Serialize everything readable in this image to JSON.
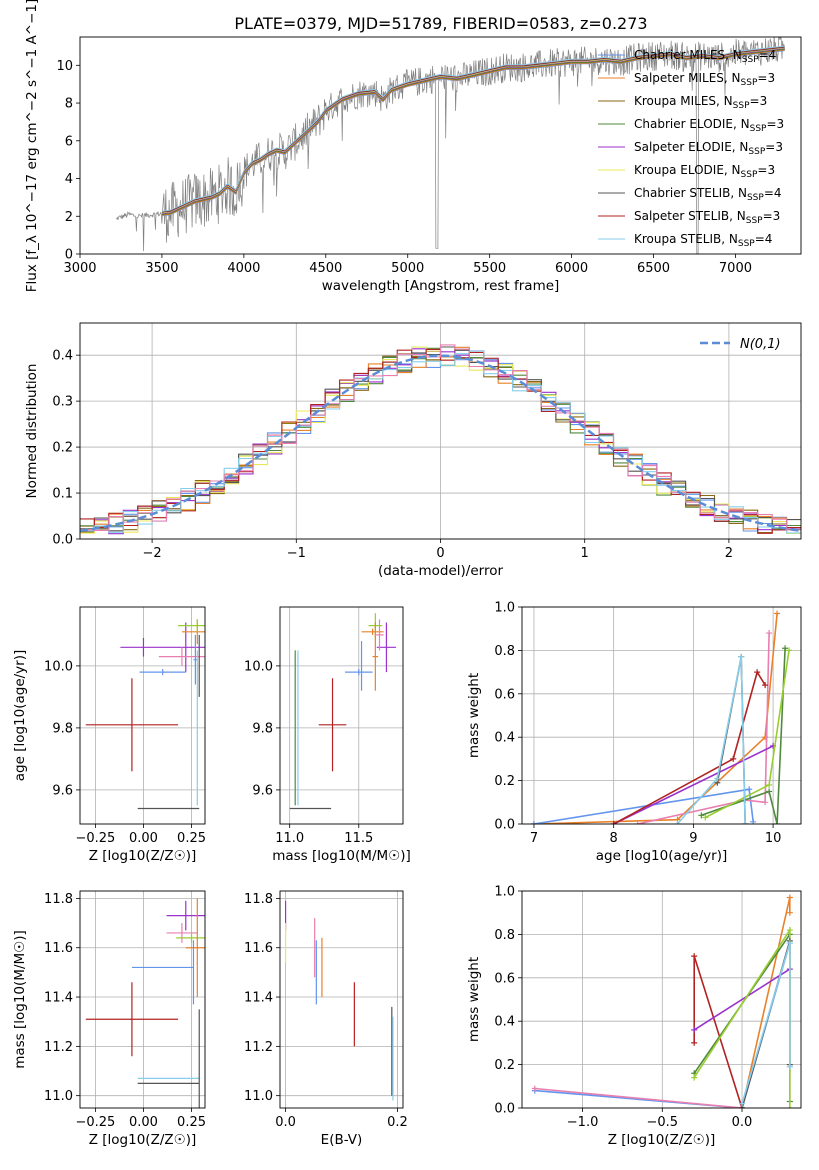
{
  "title": "PLATE=0379, MJD=51789, FIBERID=0583, z=0.273",
  "colors": {
    "c1": "#6495ed",
    "c2": "#e8822a",
    "c3": "#8b6914",
    "c4": "#4f8a3c",
    "c5": "#9a32cd",
    "c6": "#e8e85a",
    "c7": "#555555",
    "c8": "#b22222",
    "c9": "#87ceeb",
    "pink": "#e87fb0",
    "lime": "#9acd32"
  },
  "chart_data": [
    {
      "type": "line",
      "name": "spectrum",
      "xlabel": "wavelength [Angstrom, rest frame]",
      "ylabel": "Flux [f_λ 10^−17 erg cm^−2 s^−1 A^−1]",
      "xlim": [
        3000,
        7400
      ],
      "ylim": [
        0,
        11.5
      ],
      "xticks": [
        3000,
        3500,
        4000,
        4500,
        5000,
        5500,
        6000,
        6500,
        7000
      ],
      "yticks": [
        0,
        2,
        4,
        6,
        8,
        10
      ],
      "data_color": "#808080",
      "model_curve": {
        "x": [
          3220,
          3230,
          3300,
          3350,
          3400,
          3450,
          3500,
          3550,
          3600,
          3650,
          3700,
          3750,
          3800,
          3850,
          3900,
          3950,
          4000,
          4050,
          4100,
          4150,
          4200,
          4250,
          4300,
          4350,
          4400,
          4450,
          4500,
          4600,
          4700,
          4800,
          4850,
          4900,
          5000,
          5100,
          5200,
          5300,
          5400,
          5500,
          5600,
          5700,
          5800,
          5900,
          6000,
          6100,
          6200,
          6300,
          6400,
          6500,
          6600,
          6700,
          6800,
          6900,
          7000,
          7100,
          7200,
          7300
        ],
        "y": [
          1.8,
          1.9,
          2.1,
          2.0,
          2.05,
          2.1,
          2.15,
          2.2,
          2.4,
          2.6,
          2.8,
          2.9,
          3.0,
          3.2,
          3.6,
          3.3,
          4.3,
          4.8,
          5.0,
          5.3,
          5.5,
          5.4,
          5.8,
          6.2,
          6.6,
          7.0,
          7.6,
          8.2,
          8.5,
          8.6,
          8.2,
          8.7,
          9.0,
          9.2,
          9.4,
          9.3,
          9.5,
          9.7,
          9.9,
          9.9,
          10.0,
          10.1,
          10.2,
          10.2,
          10.3,
          10.2,
          10.4,
          10.5,
          10.6,
          10.4,
          10.5,
          10.4,
          10.6,
          10.7,
          10.8,
          10.9
        ]
      },
      "legend": [
        {
          "label": "Chabrier MILES, N",
          "n": "4",
          "color": "#6495ed"
        },
        {
          "label": "Salpeter MILES, N",
          "n": "3",
          "color": "#e8822a"
        },
        {
          "label": "Kroupa MILES, N",
          "n": "3",
          "color": "#8b6914"
        },
        {
          "label": "Chabrier ELODIE, N",
          "n": "3",
          "color": "#4f8a3c"
        },
        {
          "label": "Salpeter ELODIE, N",
          "n": "3",
          "color": "#9a32cd"
        },
        {
          "label": "Kroupa ELODIE, N",
          "n": "3",
          "color": "#e8e85a"
        },
        {
          "label": "Chabrier STELIB, N",
          "n": "4",
          "color": "#555555"
        },
        {
          "label": "Salpeter STELIB, N",
          "n": "3",
          "color": "#b22222"
        },
        {
          "label": "Kroupa STELIB, N",
          "n": "4",
          "color": "#87ceeb"
        }
      ],
      "legend_sub": "SSP",
      "legend_position": "right"
    },
    {
      "type": "line",
      "name": "histogram",
      "xlabel": "(data-model)/error",
      "ylabel": "Normed distribution",
      "xlim": [
        -2.5,
        2.5
      ],
      "ylim": [
        0,
        0.47
      ],
      "xticks": [
        -2,
        -1,
        0,
        1,
        2
      ],
      "yticks": [
        0.0,
        0.1,
        0.2,
        0.3,
        0.4
      ],
      "legend_label": "N(0,1)",
      "legend_position": "top-right",
      "grid": true
    },
    {
      "type": "scatter",
      "name": "age-vs-Z",
      "xlabel": "Z [log10(Z/Z☉)]",
      "ylabel": "age [log10(age/yr)]",
      "xlim": [
        -0.33,
        0.32
      ],
      "ylim": [
        9.49,
        10.19
      ],
      "xticks": [
        -0.25,
        0.0,
        0.25
      ],
      "yticks": [
        9.6,
        9.8,
        10.0
      ],
      "crosses": [
        {
          "x": 0.0,
          "y": 10.06,
          "xerr": 0.12,
          "yerr": 0.03,
          "color": "#9a32cd"
        },
        {
          "x": 0.22,
          "y": 10.06,
          "xerr": 0.1,
          "yerr": 0.08,
          "color": "#9a32cd"
        },
        {
          "x": 0.28,
          "y": 10.11,
          "xerr": 0.08,
          "yerr": 0.04,
          "color": "#e8822a"
        },
        {
          "x": 0.28,
          "y": 10.13,
          "xerr": 0.1,
          "yerr": 0.02,
          "color": "#9acd32"
        },
        {
          "x": 0.2,
          "y": 10.03,
          "xerr": 0.12,
          "yerr": 0.03,
          "color": "#e87fb0"
        },
        {
          "x": 0.1,
          "y": 9.98,
          "xerr": 0.12,
          "yerr": 0.01,
          "color": "#6495ed"
        },
        {
          "x": 0.27,
          "y": 10.02,
          "xerr": 0.01,
          "yerr": 0.08,
          "color": "#6495ed"
        },
        {
          "x": -0.06,
          "y": 9.81,
          "xerr": 0.24,
          "yerr": 0.15,
          "color": "#b22222"
        },
        {
          "x": 0.13,
          "y": 9.54,
          "xerr": 0.16,
          "yerr": 0.0,
          "color": "#555555"
        },
        {
          "x": 0.28,
          "y": 9.8,
          "xerr": 0.0,
          "yerr": 0.25,
          "color": "#87ceeb"
        },
        {
          "x": 0.29,
          "y": 10.0,
          "xerr": 0.0,
          "yerr": 0.1,
          "color": "#555555"
        }
      ]
    },
    {
      "type": "scatter",
      "name": "age-vs-mass",
      "xlabel": "mass [log10(M/M☉)]",
      "ylabel": "",
      "xlim": [
        10.93,
        11.82
      ],
      "ylim": [
        9.49,
        10.19
      ],
      "xticks": [
        11.0,
        11.5
      ],
      "yticks": [
        9.6,
        9.8,
        10.0
      ],
      "crosses": [
        {
          "x": 11.7,
          "y": 10.06,
          "xerr": 0.07,
          "yerr": 0.08,
          "color": "#9a32cd"
        },
        {
          "x": 11.62,
          "y": 10.13,
          "xerr": 0.05,
          "yerr": 0.04,
          "color": "#9acd32"
        },
        {
          "x": 11.6,
          "y": 10.11,
          "xerr": 0.08,
          "yerr": 0.01,
          "color": "#e8822a"
        },
        {
          "x": 11.62,
          "y": 10.03,
          "xerr": 0.02,
          "yerr": 0.11,
          "color": "#e8822a"
        },
        {
          "x": 11.65,
          "y": 10.1,
          "xerr": 0.03,
          "yerr": 0.05,
          "color": "#e87fb0"
        },
        {
          "x": 11.5,
          "y": 9.98,
          "xerr": 0.1,
          "yerr": 0.01,
          "color": "#6495ed"
        },
        {
          "x": 11.52,
          "y": 10.0,
          "xerr": 0.0,
          "yerr": 0.08,
          "color": "#6495ed"
        },
        {
          "x": 11.31,
          "y": 9.81,
          "xerr": 0.1,
          "yerr": 0.15,
          "color": "#b22222"
        },
        {
          "x": 11.15,
          "y": 9.54,
          "xerr": 0.15,
          "yerr": 0.0,
          "color": "#555555"
        },
        {
          "x": 11.06,
          "y": 9.8,
          "xerr": 0.0,
          "yerr": 0.25,
          "color": "#87ceeb"
        },
        {
          "x": 11.04,
          "y": 9.8,
          "xerr": 0.0,
          "yerr": 0.25,
          "color": "#4f8a3c"
        }
      ]
    },
    {
      "type": "line",
      "name": "mass-weight-vs-age",
      "xlabel": "age [log10(age/yr)]",
      "ylabel": "mass weight",
      "xlim": [
        6.85,
        10.35
      ],
      "ylim": [
        0,
        1.0
      ],
      "xticks": [
        7,
        8,
        9,
        10
      ],
      "yticks": [
        0.0,
        0.2,
        0.4,
        0.6,
        0.8,
        1.0
      ],
      "series": [
        {
          "color": "#e8822a",
          "x": [
            7.0,
            8.8,
            9.9,
            10.05
          ],
          "y": [
            0.0,
            0.02,
            0.4,
            0.97
          ]
        },
        {
          "color": "#6495ed",
          "x": [
            7.0,
            9.7,
            9.75
          ],
          "y": [
            0.0,
            0.16,
            0.01
          ]
        },
        {
          "color": "#e87fb0",
          "x": [
            8.3,
            9.65,
            9.9,
            9.95
          ],
          "y": [
            0.0,
            0.11,
            0.1,
            0.88
          ]
        },
        {
          "color": "#9a32cd",
          "x": [
            8.0,
            10.0
          ],
          "y": [
            0.0,
            0.36
          ]
        },
        {
          "color": "#b22222",
          "x": [
            8.0,
            9.5,
            9.8,
            9.9
          ],
          "y": [
            0.0,
            0.3,
            0.7,
            0.64
          ]
        },
        {
          "color": "#4f8a3c",
          "x": [
            9.1,
            9.95,
            10.05,
            10.15
          ],
          "y": [
            0.04,
            0.15,
            0.0,
            0.81
          ]
        },
        {
          "color": "#9acd32",
          "x": [
            9.15,
            9.95,
            10.2
          ],
          "y": [
            0.03,
            0.18,
            0.8
          ]
        },
        {
          "color": "#555555",
          "x": [
            9.3,
            9.6,
            9.65
          ],
          "y": [
            0.19,
            0.77,
            0.0
          ]
        },
        {
          "color": "#87ceeb",
          "x": [
            8.8,
            9.3,
            9.6,
            9.65
          ],
          "y": [
            0.0,
            0.21,
            0.77,
            0.0
          ]
        }
      ]
    },
    {
      "type": "scatter",
      "name": "mass-vs-Z",
      "xlabel": "Z [log10(Z/Z☉)]",
      "ylabel": "mass [log10(M/M☉)]",
      "xlim": [
        -0.33,
        0.32
      ],
      "ylim": [
        10.95,
        11.83
      ],
      "xticks": [
        -0.25,
        0.0,
        0.25
      ],
      "yticks": [
        11.0,
        11.2,
        11.4,
        11.6,
        11.8
      ],
      "crosses": [
        {
          "x": 0.22,
          "y": 11.73,
          "xerr": 0.1,
          "yerr": 0.06,
          "color": "#9a32cd"
        },
        {
          "x": 0.2,
          "y": 11.66,
          "xerr": 0.08,
          "yerr": 0.04,
          "color": "#e87fb0"
        },
        {
          "x": 0.25,
          "y": 11.64,
          "xerr": 0.08,
          "yerr": 0.02,
          "color": "#9acd32"
        },
        {
          "x": 0.28,
          "y": 11.6,
          "xerr": 0.06,
          "yerr": 0.2,
          "color": "#e8822a"
        },
        {
          "x": 0.1,
          "y": 11.52,
          "xerr": 0.16,
          "yerr": 0.0,
          "color": "#6495ed"
        },
        {
          "x": 0.26,
          "y": 11.5,
          "xerr": 0.0,
          "yerr": 0.13,
          "color": "#6495ed"
        },
        {
          "x": -0.06,
          "y": 11.31,
          "xerr": 0.24,
          "yerr": 0.15,
          "color": "#b22222"
        },
        {
          "x": 0.13,
          "y": 11.07,
          "xerr": 0.16,
          "yerr": 0.0,
          "color": "#87ceeb"
        },
        {
          "x": 0.13,
          "y": 11.05,
          "xerr": 0.16,
          "yerr": 0.0,
          "color": "#555555"
        },
        {
          "x": 0.29,
          "y": 11.15,
          "xerr": 0.0,
          "yerr": 0.2,
          "color": "#555555"
        }
      ]
    },
    {
      "type": "scatter",
      "name": "mass-vs-EBV",
      "xlabel": "E(B-V)",
      "ylabel": "",
      "xlim": [
        -0.01,
        0.21
      ],
      "ylim": [
        10.95,
        11.83
      ],
      "xticks": [
        0.0,
        0.2
      ],
      "yticks": [
        11.0,
        11.2,
        11.4,
        11.6,
        11.8
      ],
      "crosses": [
        {
          "x": 0.0,
          "y": 11.73,
          "xerr": 0.0,
          "yerr": 0.06,
          "color": "#9a32cd"
        },
        {
          "x": 0.0,
          "y": 11.62,
          "xerr": 0.0,
          "yerr": 0.08,
          "color": "#e8e85a"
        },
        {
          "x": 0.052,
          "y": 11.6,
          "xerr": 0.0,
          "yerr": 0.12,
          "color": "#e87fb0"
        },
        {
          "x": 0.055,
          "y": 11.5,
          "xerr": 0.0,
          "yerr": 0.13,
          "color": "#6495ed"
        },
        {
          "x": 0.065,
          "y": 11.52,
          "xerr": 0.0,
          "yerr": 0.12,
          "color": "#e8822a"
        },
        {
          "x": 0.123,
          "y": 11.33,
          "xerr": 0.0,
          "yerr": 0.13,
          "color": "#b22222"
        },
        {
          "x": 0.19,
          "y": 11.18,
          "xerr": 0.0,
          "yerr": 0.18,
          "color": "#555555"
        },
        {
          "x": 0.192,
          "y": 11.15,
          "xerr": 0.0,
          "yerr": 0.17,
          "color": "#87ceeb"
        }
      ]
    },
    {
      "type": "line",
      "name": "mass-weight-vs-Z",
      "xlabel": "Z [log10(Z/Z☉)]",
      "ylabel": "mass weight",
      "xlim": [
        -1.38,
        0.37
      ],
      "ylim": [
        0,
        1.0
      ],
      "xticks": [
        -1.0,
        -0.5,
        0.0
      ],
      "yticks": [
        0.0,
        0.2,
        0.4,
        0.6,
        0.8,
        1.0
      ],
      "series": [
        {
          "color": "#6495ed",
          "x": [
            -1.3,
            0.0,
            0.3
          ],
          "y": [
            0.08,
            0.0,
            0.76
          ]
        },
        {
          "color": "#e87fb0",
          "x": [
            -1.3,
            0.0
          ],
          "y": [
            0.09,
            0.0
          ]
        },
        {
          "color": "#e8822a",
          "x": [
            0.0,
            0.3,
            0.3
          ],
          "y": [
            0.0,
            0.97,
            0.9
          ]
        },
        {
          "color": "#b22222",
          "x": [
            -0.3,
            -0.3,
            0.0
          ],
          "y": [
            0.3,
            0.7,
            0.0
          ]
        },
        {
          "color": "#9a32cd",
          "x": [
            -0.3,
            0.3
          ],
          "y": [
            0.36,
            0.64
          ]
        },
        {
          "color": "#4f8a3c",
          "x": [
            -0.3,
            0.3,
            0.3
          ],
          "y": [
            0.16,
            0.8,
            0.03
          ]
        },
        {
          "color": "#9acd32",
          "x": [
            -0.3,
            0.3,
            0.3
          ],
          "y": [
            0.14,
            0.82,
            0.0
          ]
        },
        {
          "color": "#555555",
          "x": [
            0.0,
            0.3,
            0.3
          ],
          "y": [
            0.0,
            0.77,
            0.2
          ]
        },
        {
          "color": "#87ceeb",
          "x": [
            0.0,
            0.3,
            0.3
          ],
          "y": [
            0.02,
            0.76,
            0.19
          ]
        }
      ]
    }
  ]
}
